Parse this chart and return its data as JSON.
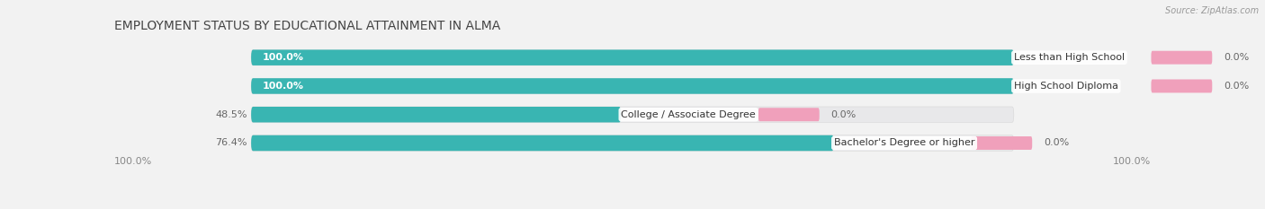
{
  "title": "EMPLOYMENT STATUS BY EDUCATIONAL ATTAINMENT IN ALMA",
  "source": "Source: ZipAtlas.com",
  "categories": [
    "Less than High School",
    "High School Diploma",
    "College / Associate Degree",
    "Bachelor's Degree or higher"
  ],
  "in_labor_force": [
    100.0,
    100.0,
    48.5,
    76.4
  ],
  "unemployed": [
    0.0,
    0.0,
    0.0,
    0.0
  ],
  "unemployed_fixed": [
    15.0,
    15.0,
    15.0,
    15.0
  ],
  "labor_color": "#39b5b2",
  "unemployed_color": "#f0a0bb",
  "background_bar_color": "#e8e8ea",
  "fig_bg_color": "#f2f2f2",
  "bottom_left_label": "100.0%",
  "bottom_right_label": "100.0%",
  "title_fontsize": 10,
  "bar_label_fontsize": 8,
  "cat_label_fontsize": 8,
  "legend_fontsize": 8
}
